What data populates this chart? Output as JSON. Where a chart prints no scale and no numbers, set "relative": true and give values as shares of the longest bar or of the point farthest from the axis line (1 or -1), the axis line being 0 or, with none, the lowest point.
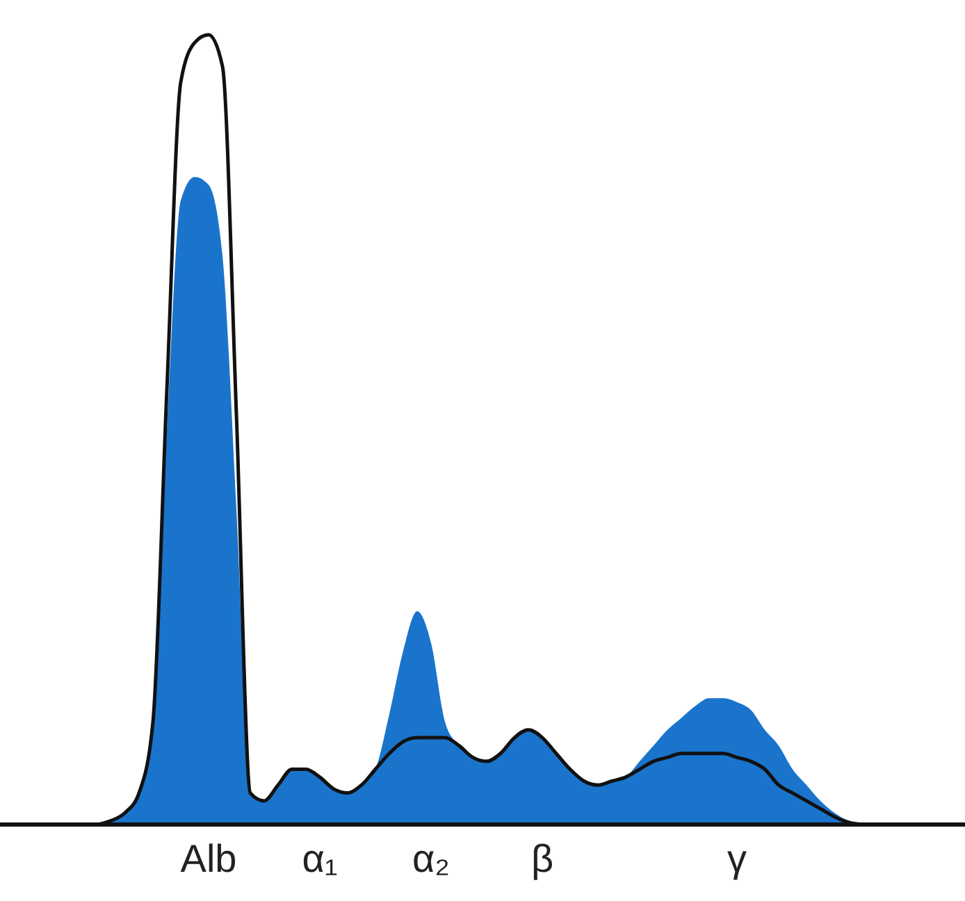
{
  "chart_data": {
    "type": "area",
    "relative": true,
    "categories": [
      null,
      null,
      null,
      null,
      null,
      null,
      null,
      null,
      "Alb",
      null,
      null,
      null,
      null,
      null,
      null,
      null,
      "α₁",
      null,
      null,
      null,
      null,
      null,
      null,
      null,
      "α₂",
      null,
      null,
      null,
      null,
      null,
      null,
      null,
      "β",
      null,
      null,
      null,
      null,
      null,
      null,
      null,
      null,
      null,
      null,
      null,
      null,
      null,
      "γ",
      null,
      null,
      null,
      null,
      null,
      null,
      null,
      null,
      null
    ],
    "series": [
      {
        "color": "#1a74cc",
        "values": [
          0,
          0.005,
          0.015,
          0.04,
          0.12,
          0.5,
          0.79,
          0.82,
          0.81,
          0.72,
          0.4,
          0.04,
          0.03,
          0.05,
          0.07,
          0.07,
          0.06,
          0.045,
          0.04,
          0.05,
          0.07,
          0.14,
          0.22,
          0.27,
          0.23,
          0.13,
          0.1,
          0.085,
          0.08,
          0.09,
          0.11,
          0.12,
          0.11,
          0.09,
          0.07,
          0.055,
          0.05,
          0.055,
          0.06,
          0.08,
          0.1,
          0.12,
          0.135,
          0.15,
          0.16,
          0.16,
          0.155,
          0.145,
          0.12,
          0.1,
          0.07,
          0.05,
          0.03,
          0.015,
          0.005,
          0
        ]
      },
      {
        "type": "line",
        "color": "#111111",
        "values": [
          0,
          0.005,
          0.015,
          0.04,
          0.13,
          0.55,
          0.94,
          0.99,
          1,
          0.96,
          0.52,
          0.04,
          0.03,
          0.05,
          0.07,
          0.07,
          0.06,
          0.045,
          0.04,
          0.05,
          0.07,
          0.09,
          0.105,
          0.11,
          0.11,
          0.11,
          0.1,
          0.085,
          0.08,
          0.09,
          0.11,
          0.12,
          0.11,
          0.09,
          0.07,
          0.055,
          0.05,
          0.055,
          0.06,
          0.07,
          0.08,
          0.085,
          0.09,
          0.09,
          0.09,
          0.09,
          0.085,
          0.08,
          0.07,
          0.05,
          0.04,
          0.03,
          0.02,
          0.01,
          0.003,
          0
        ]
      }
    ]
  }
}
